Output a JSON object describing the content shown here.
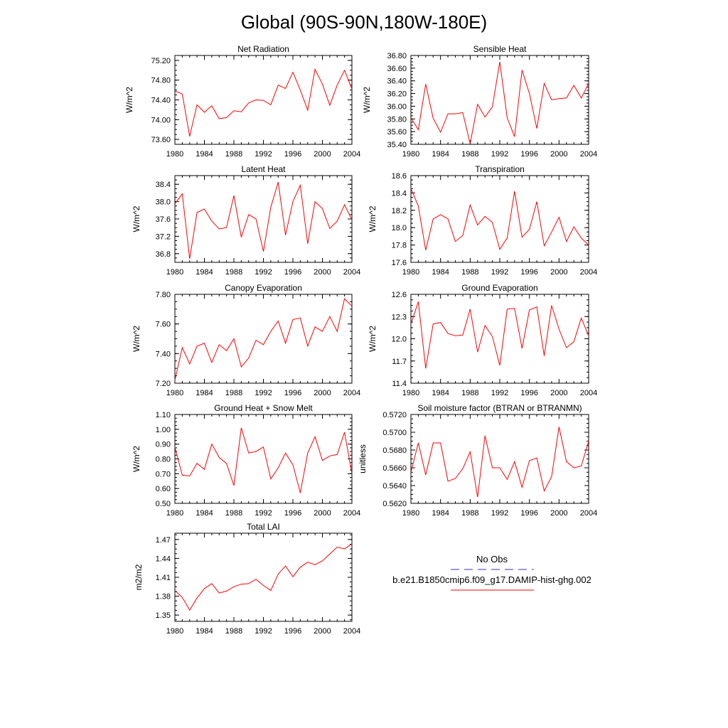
{
  "title": "Global (90S-90N,180W-180E)",
  "line_color": "#ff0000",
  "legend": {
    "obs_label": "No Obs",
    "obs_color": "#3333cc",
    "model_label": "b.e21.B1850cmip6.f09_g17.DAMIP-hist-ghg.002",
    "model_color": "#ff0000"
  },
  "chart_data": [
    {
      "type": "line",
      "title": "Net Radiation",
      "ylabel": "W/m^2",
      "ylim": [
        73.5,
        75.3
      ],
      "yticks": [
        "73.60",
        "74.00",
        "74.40",
        "74.80",
        "75.20"
      ],
      "xticks": [
        "1980",
        "1984",
        "1988",
        "1992",
        "1996",
        "2000",
        "2004"
      ],
      "x": [
        1980,
        1981,
        1982,
        1983,
        1984,
        1985,
        1986,
        1987,
        1988,
        1989,
        1990,
        1991,
        1992,
        1993,
        1994,
        1995,
        1996,
        1997,
        1998,
        1999,
        2000,
        2001,
        2002,
        2003,
        2004
      ],
      "values": [
        74.58,
        74.52,
        73.66,
        74.3,
        74.15,
        74.28,
        74.02,
        74.04,
        74.18,
        74.16,
        74.34,
        74.4,
        74.39,
        74.3,
        74.7,
        74.63,
        74.96,
        74.6,
        74.19,
        75.02,
        74.72,
        74.29,
        74.7,
        75.0,
        74.62
      ]
    },
    {
      "type": "line",
      "title": "Sensible Heat",
      "ylabel": "W/m^2",
      "ylim": [
        35.4,
        36.8
      ],
      "yticks": [
        "35.40",
        "35.60",
        "35.80",
        "36.00",
        "36.20",
        "36.40",
        "36.60",
        "36.80"
      ],
      "xticks": [
        "1980",
        "1984",
        "1988",
        "1992",
        "1996",
        "2000",
        "2004"
      ],
      "x": [
        1980,
        1981,
        1982,
        1983,
        1984,
        1985,
        1986,
        1987,
        1988,
        1989,
        1990,
        1991,
        1992,
        1993,
        1994,
        1995,
        1996,
        1997,
        1998,
        1999,
        2000,
        2001,
        2002,
        2003,
        2004
      ],
      "values": [
        35.82,
        35.63,
        36.35,
        35.81,
        35.59,
        35.88,
        35.88,
        35.9,
        35.41,
        36.03,
        35.83,
        35.99,
        36.7,
        35.82,
        35.52,
        36.57,
        36.2,
        35.65,
        36.36,
        36.1,
        36.12,
        36.13,
        36.33,
        36.13,
        36.36
      ]
    },
    {
      "type": "line",
      "title": "Latent Heat",
      "ylabel": "W/m^2",
      "ylim": [
        36.6,
        38.6
      ],
      "yticks": [
        "36.8",
        "37.2",
        "37.6",
        "38.0",
        "38.4"
      ],
      "xticks": [
        "1980",
        "1984",
        "1988",
        "1992",
        "1996",
        "2000",
        "2004"
      ],
      "x": [
        1980,
        1981,
        1982,
        1983,
        1984,
        1985,
        1986,
        1987,
        1988,
        1989,
        1990,
        1991,
        1992,
        1993,
        1994,
        1995,
        1996,
        1997,
        1998,
        1999,
        2000,
        2001,
        2002,
        2003,
        2004
      ],
      "values": [
        37.95,
        38.18,
        36.68,
        37.75,
        37.83,
        37.55,
        37.37,
        37.4,
        38.14,
        37.18,
        37.7,
        37.6,
        36.85,
        37.87,
        38.45,
        37.23,
        38.0,
        38.38,
        37.03,
        38.0,
        37.84,
        37.38,
        37.55,
        37.93,
        37.58
      ]
    },
    {
      "type": "line",
      "title": "Transpiration",
      "ylabel": "W/m^2",
      "ylim": [
        17.6,
        18.6
      ],
      "yticks": [
        "17.6",
        "17.8",
        "18.0",
        "18.2",
        "18.4",
        "18.6"
      ],
      "xticks": [
        "1980",
        "1984",
        "1988",
        "1992",
        "1996",
        "2000",
        "2004"
      ],
      "x": [
        1980,
        1981,
        1982,
        1983,
        1984,
        1985,
        1986,
        1987,
        1988,
        1989,
        1990,
        1991,
        1992,
        1993,
        1994,
        1995,
        1996,
        1997,
        1998,
        1999,
        2000,
        2001,
        2002,
        2003,
        2004
      ],
      "values": [
        18.45,
        18.25,
        17.74,
        18.1,
        18.15,
        18.1,
        17.84,
        17.91,
        18.26,
        18.03,
        18.13,
        18.06,
        17.75,
        17.88,
        18.42,
        17.89,
        17.98,
        18.3,
        17.79,
        17.95,
        18.12,
        17.84,
        18.01,
        17.88,
        17.8
      ]
    },
    {
      "type": "line",
      "title": "Canopy Evaporation",
      "ylabel": "W/m^2",
      "ylim": [
        7.2,
        7.8
      ],
      "yticks": [
        "7.20",
        "7.40",
        "7.60",
        "7.80"
      ],
      "xticks": [
        "1980",
        "1984",
        "1988",
        "1992",
        "1996",
        "2000",
        "2004"
      ],
      "x": [
        1980,
        1981,
        1982,
        1983,
        1984,
        1985,
        1986,
        1987,
        1988,
        1989,
        1990,
        1991,
        1992,
        1993,
        1994,
        1995,
        1996,
        1997,
        1998,
        1999,
        2000,
        2001,
        2002,
        2003,
        2004
      ],
      "values": [
        7.22,
        7.44,
        7.33,
        7.45,
        7.47,
        7.34,
        7.46,
        7.42,
        7.5,
        7.31,
        7.37,
        7.49,
        7.46,
        7.55,
        7.62,
        7.47,
        7.63,
        7.64,
        7.45,
        7.58,
        7.55,
        7.65,
        7.55,
        7.77,
        7.72
      ]
    },
    {
      "type": "line",
      "title": "Ground Evaporation",
      "ylabel": "W/m^2",
      "ylim": [
        11.4,
        12.6
      ],
      "yticks": [
        "11.4",
        "11.7",
        "12.0",
        "12.3",
        "12.6"
      ],
      "xticks": [
        "1980",
        "1984",
        "1988",
        "1992",
        "1996",
        "2000",
        "2004"
      ],
      "x": [
        1980,
        1981,
        1982,
        1983,
        1984,
        1985,
        1986,
        1987,
        1988,
        1989,
        1990,
        1991,
        1992,
        1993,
        1994,
        1995,
        1996,
        1997,
        1998,
        1999,
        2000,
        2001,
        2002,
        2003,
        2004
      ],
      "values": [
        12.2,
        12.5,
        11.6,
        12.2,
        12.22,
        12.07,
        12.04,
        12.05,
        12.4,
        11.82,
        12.18,
        12.03,
        11.64,
        12.4,
        12.41,
        11.87,
        12.39,
        12.43,
        11.77,
        12.45,
        12.13,
        11.88,
        11.96,
        12.28,
        12.04
      ]
    },
    {
      "type": "line",
      "title": "Ground Heat + Snow Melt",
      "ylabel": "W/m^2",
      "ylim": [
        0.5,
        1.1
      ],
      "yticks": [
        "0.50",
        "0.60",
        "0.70",
        "0.80",
        "0.90",
        "1.00",
        "1.10"
      ],
      "xticks": [
        "1980",
        "1984",
        "1988",
        "1992",
        "1996",
        "2000",
        "2004"
      ],
      "x": [
        1980,
        1981,
        1982,
        1983,
        1984,
        1985,
        1986,
        1987,
        1988,
        1989,
        1990,
        1991,
        1992,
        1993,
        1994,
        1995,
        1996,
        1997,
        1998,
        1999,
        2000,
        2001,
        2002,
        2003,
        2004
      ],
      "values": [
        0.88,
        0.69,
        0.685,
        0.77,
        0.73,
        0.9,
        0.81,
        0.77,
        0.62,
        1.01,
        0.84,
        0.85,
        0.88,
        0.665,
        0.74,
        0.84,
        0.76,
        0.57,
        0.84,
        0.95,
        0.79,
        0.82,
        0.83,
        0.98,
        0.7
      ]
    },
    {
      "type": "line",
      "title": "Soil moisture factor (BTRAN or BTRANMN)",
      "ylabel": "unitless",
      "ylim": [
        0.562,
        0.572
      ],
      "yticks": [
        "0.5620",
        "0.5640",
        "0.5660",
        "0.5680",
        "0.5700",
        "0.5720"
      ],
      "xticks": [
        "1980",
        "1984",
        "1988",
        "1992",
        "1996",
        "2000",
        "2004"
      ],
      "x": [
        1980,
        1981,
        1982,
        1983,
        1984,
        1985,
        1986,
        1987,
        1988,
        1989,
        1990,
        1991,
        1992,
        1993,
        1994,
        1995,
        1996,
        1997,
        1998,
        1999,
        2000,
        2001,
        2002,
        2003,
        2004
      ],
      "values": [
        0.5655,
        0.5688,
        0.5652,
        0.5688,
        0.5688,
        0.5645,
        0.5648,
        0.5659,
        0.5678,
        0.5627,
        0.5696,
        0.566,
        0.566,
        0.5647,
        0.5667,
        0.5638,
        0.5668,
        0.5671,
        0.5634,
        0.565,
        0.5706,
        0.5667,
        0.566,
        0.5662,
        0.569
      ]
    },
    {
      "type": "line",
      "title": "Total LAI",
      "ylabel": "m2/m2",
      "ylim": [
        1.34,
        1.48
      ],
      "yticks": [
        "1.35",
        "1.38",
        "1.41",
        "1.44",
        "1.47"
      ],
      "xticks": [
        "1980",
        "1984",
        "1988",
        "1992",
        "1996",
        "2000",
        "2004"
      ],
      "x": [
        1980,
        1981,
        1982,
        1983,
        1984,
        1985,
        1986,
        1987,
        1988,
        1989,
        1990,
        1991,
        1992,
        1993,
        1994,
        1995,
        1996,
        1997,
        1998,
        1999,
        2000,
        2001,
        2002,
        2003,
        2004
      ],
      "values": [
        1.389,
        1.378,
        1.358,
        1.377,
        1.392,
        1.4,
        1.385,
        1.388,
        1.395,
        1.399,
        1.4,
        1.407,
        1.397,
        1.389,
        1.415,
        1.428,
        1.411,
        1.426,
        1.434,
        1.43,
        1.436,
        1.447,
        1.458,
        1.455,
        1.463
      ]
    }
  ]
}
